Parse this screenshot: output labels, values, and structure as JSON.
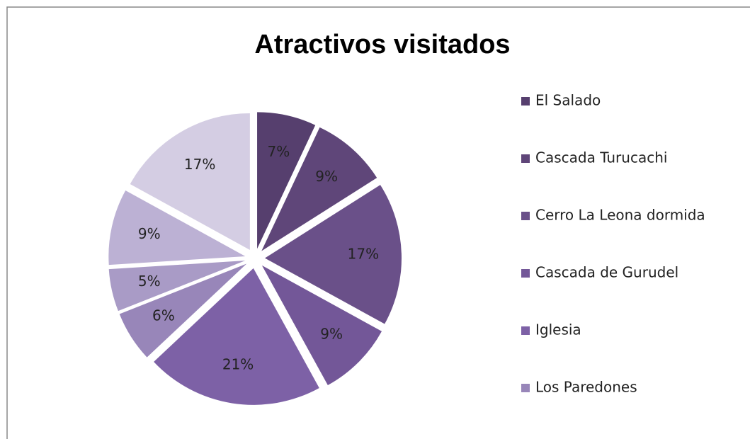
{
  "chart_data": {
    "type": "pie",
    "title": "Atractivos visitados",
    "categories": [
      "El Salado",
      "Cascada Turucachi",
      "Cerro La Leona dormida",
      "Cascada de Gurudel",
      "Iglesia",
      "Los Paredones",
      null,
      null,
      null
    ],
    "values": [
      7,
      9,
      17,
      9,
      21,
      6,
      5,
      9,
      17
    ],
    "value_labels": [
      "7%",
      "9%",
      "17%",
      "9%",
      "21%",
      "6%",
      "5%",
      "9%",
      "17%"
    ],
    "colors": [
      "#563f6e",
      "#5f4679",
      "#6a5089",
      "#735798",
      "#7d61a6",
      "#9886b9",
      "#a99bc6",
      "#bcb1d4",
      "#d4cde3"
    ]
  }
}
